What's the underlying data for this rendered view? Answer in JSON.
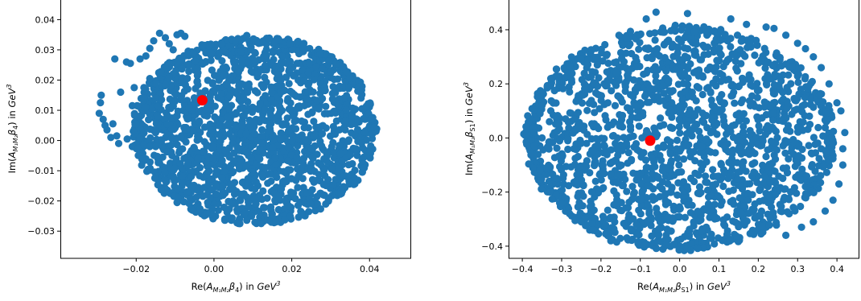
{
  "chart_data": [
    {
      "type": "scatter",
      "title": "",
      "xlabel": "Re(A_{M1M2}β4) in GeV^3",
      "ylabel": "Im(A_{M1M2}β4) in GeV^3",
      "xlabel_parts": {
        "pre": "Re(",
        "sym": "A",
        "sub": "M₁M₂",
        "greek": "β",
        "greek_sub": "4",
        "post": ") in ",
        "unit": "GeV",
        "unit_sup": "3"
      },
      "ylabel_parts": {
        "pre": "Im(",
        "sym": "A",
        "sub": "M₁M₂",
        "greek": "β",
        "greek_sub": "4",
        "post": ") in ",
        "unit": "GeV",
        "unit_sup": "3"
      },
      "xlim": [
        -0.0395,
        0.0505
      ],
      "ylim": [
        -0.039,
        0.0465
      ],
      "xticks": [
        -0.02,
        0.0,
        0.02,
        0.04
      ],
      "xtick_labels": [
        "−0.02",
        "0.00",
        "0.02",
        "0.04"
      ],
      "yticks": [
        -0.03,
        -0.02,
        -0.01,
        0.0,
        0.01,
        0.02,
        0.03,
        0.04
      ],
      "ytick_labels": [
        "−0.03",
        "−0.02",
        "−0.01",
        "0.00",
        "0.01",
        "0.02",
        "0.03",
        "0.04"
      ],
      "grid": false,
      "scatter_color": "#1f77b4",
      "highlight_color": "#ff0000",
      "main_cloud": {
        "center": [
          0.0105,
          0.0035
        ],
        "radius_x": 0.0305,
        "radius_y": 0.0305
      },
      "hole": [
        [
          -0.0041,
          -0.0005
        ],
        [
          -0.0027,
          0.0005
        ],
        [
          -0.0031,
          -0.0045
        ],
        [
          -0.0039,
          -0.009
        ]
      ],
      "outliers": [
        [
          -0.0295,
          0.009
        ],
        [
          -0.0292,
          0.0125
        ],
        [
          -0.029,
          0.015
        ],
        [
          -0.0285,
          0.007
        ],
        [
          -0.028,
          0.005
        ],
        [
          -0.0275,
          0.0035
        ],
        [
          -0.0265,
          0.001
        ],
        [
          -0.026,
          0.0055
        ],
        [
          -0.025,
          0.0015
        ],
        [
          -0.024,
          0.016
        ],
        [
          -0.0255,
          0.027
        ],
        [
          -0.0225,
          0.026
        ],
        [
          -0.0215,
          0.0255
        ],
        [
          -0.019,
          0.027
        ],
        [
          -0.0175,
          0.028
        ],
        [
          -0.0165,
          0.0305
        ],
        [
          -0.0155,
          0.033
        ],
        [
          -0.014,
          0.0355
        ],
        [
          -0.0125,
          0.034
        ],
        [
          -0.0115,
          0.032
        ],
        [
          -0.0095,
          0.035
        ],
        [
          -0.0085,
          0.0355
        ],
        [
          -0.0075,
          0.0345
        ],
        [
          -0.0105,
          0.03
        ],
        [
          -0.0165,
          0.0205
        ],
        [
          -0.018,
          0.0175
        ],
        [
          -0.0205,
          0.0175
        ],
        [
          -0.015,
          0.014
        ],
        [
          -0.016,
          0.0105
        ],
        [
          -0.0175,
          0.011
        ],
        [
          -0.02,
          0.0055
        ],
        [
          -0.018,
          0.0025
        ],
        [
          -0.021,
          -0.002
        ],
        [
          -0.0195,
          -0.0025
        ],
        [
          -0.018,
          -0.0015
        ],
        [
          -0.0165,
          -0.002
        ],
        [
          -0.015,
          -0.002
        ],
        [
          -0.0135,
          0.0
        ],
        [
          -0.0135,
          0.0135
        ],
        [
          -0.0125,
          0.0185
        ],
        [
          -0.0115,
          0.021
        ],
        [
          -0.0245,
          -0.001
        ],
        [
          -0.0223,
          0.0005
        ],
        [
          -0.021,
          0.0115
        ]
      ],
      "highlight_point": [
        -0.003,
        0.0133
      ]
    },
    {
      "type": "scatter",
      "title": "",
      "xlabel": "Re(A_{M1M2}βS1) in GeV^3",
      "ylabel": "Im(A_{M1M2}βS1) in GeV^3",
      "xlabel_parts": {
        "pre": "Re(",
        "sym": "A",
        "sub": "M₁M₂",
        "greek": "β",
        "greek_sub": "S1",
        "post": ") in ",
        "unit": "GeV",
        "unit_sup": "3"
      },
      "ylabel_parts": {
        "pre": "Im(",
        "sym": "A",
        "sub": "M₁M₂",
        "greek": "β",
        "greek_sub": "S1",
        "post": ") in ",
        "unit": "GeV",
        "unit_sup": "3"
      },
      "xlim": [
        -0.435,
        0.455
      ],
      "ylim": [
        -0.445,
        0.51
      ],
      "xticks": [
        -0.4,
        -0.3,
        -0.2,
        -0.1,
        0.0,
        0.1,
        0.2,
        0.3,
        0.4
      ],
      "xtick_labels": [
        "−0.4",
        "−0.3",
        "−0.2",
        "−0.1",
        "0.0",
        "0.1",
        "0.2",
        "0.3",
        "0.4"
      ],
      "yticks": [
        -0.4,
        -0.2,
        0.0,
        0.2,
        0.4
      ],
      "ytick_labels": [
        "−0.4",
        "−0.2",
        "0.0",
        "0.2",
        "0.4"
      ],
      "grid": false,
      "scatter_color": "#1f77b4",
      "highlight_color": "#ff0000",
      "main_cloud": {
        "center": [
          0.0,
          0.0
        ],
        "radius_x": 0.385,
        "radius_y": 0.405
      },
      "outliers": [
        [
          0.02,
          0.46
        ],
        [
          -0.06,
          0.465
        ],
        [
          -0.085,
          0.44
        ],
        [
          -0.19,
          0.345
        ],
        [
          -0.25,
          0.29
        ],
        [
          -0.28,
          0.265
        ],
        [
          -0.31,
          0.225
        ],
        [
          -0.335,
          0.19
        ],
        [
          -0.37,
          0.02
        ],
        [
          -0.37,
          -0.03
        ],
        [
          -0.355,
          -0.12
        ],
        [
          -0.33,
          -0.2
        ],
        [
          -0.3,
          -0.24
        ],
        [
          -0.28,
          -0.28
        ],
        [
          -0.25,
          -0.31
        ],
        [
          -0.22,
          -0.34
        ],
        [
          -0.175,
          -0.38
        ],
        [
          -0.16,
          -0.385
        ],
        [
          0.22,
          0.41
        ],
        [
          0.24,
          0.405
        ],
        [
          0.27,
          0.38
        ],
        [
          0.3,
          0.35
        ],
        [
          0.32,
          0.33
        ],
        [
          0.34,
          0.3
        ],
        [
          0.36,
          0.26
        ],
        [
          0.38,
          0.2
        ],
        [
          0.4,
          0.13
        ],
        [
          0.41,
          0.1
        ],
        [
          0.415,
          -0.1
        ],
        [
          0.405,
          -0.17
        ],
        [
          0.39,
          -0.23
        ],
        [
          0.37,
          -0.27
        ],
        [
          0.34,
          -0.31
        ],
        [
          0.31,
          -0.33
        ],
        [
          0.27,
          -0.36
        ],
        [
          0.13,
          0.44
        ],
        [
          0.17,
          0.42
        ],
        [
          -0.35,
          0.12
        ],
        [
          -0.355,
          0.09
        ],
        [
          0.42,
          0.02
        ],
        [
          0.415,
          -0.04
        ]
      ],
      "highlight_point": [
        -0.075,
        -0.01
      ]
    }
  ]
}
